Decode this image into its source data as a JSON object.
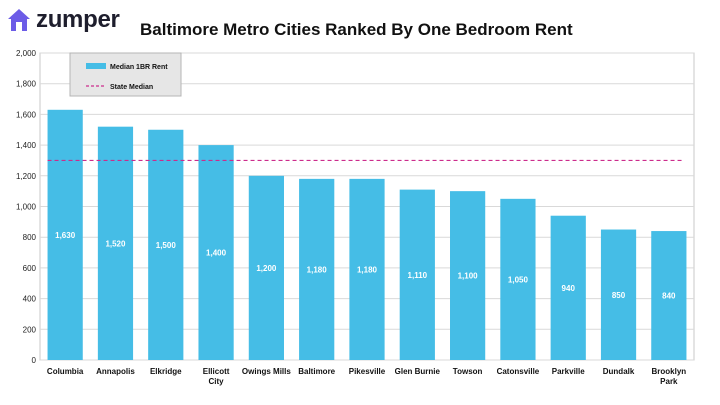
{
  "brand": {
    "name": "zumper",
    "logo_color": "#6c5ce7"
  },
  "title": "Baltimore Metro Cities Ranked By One Bedroom Rent",
  "chart_data": {
    "type": "bar",
    "categories": [
      "Columbia",
      "Annapolis",
      "Elkridge",
      "Ellicott City",
      "Owings Mills",
      "Baltimore",
      "Pikesville",
      "Glen Burnie",
      "Towson",
      "Catonsville",
      "Parkville",
      "Dundalk",
      "Brooklyn Park"
    ],
    "series": [
      {
        "name": "Median 1BR Rent",
        "values": [
          1630,
          1520,
          1500,
          1400,
          1200,
          1180,
          1180,
          1110,
          1100,
          1050,
          940,
          850,
          840
        ],
        "color": "#45bde6"
      }
    ],
    "reference_line": {
      "name": "State Median",
      "value": 1300,
      "color": "#cc2c8c",
      "style": "dashed"
    },
    "data_labels": [
      "1,630",
      "1,520",
      "1,500",
      "1,400",
      "1,200",
      "1,180",
      "1,180",
      "1,110",
      "1,100",
      "1,050",
      "940",
      "850",
      "840"
    ],
    "y_ticks": [
      "0",
      "200",
      "400",
      "600",
      "800",
      "1,000",
      "1,200",
      "1,400",
      "1,600",
      "1,800",
      "2,000"
    ],
    "ylim": [
      0,
      2000
    ],
    "grid": true,
    "legend_position": "top-left",
    "xlabel": "",
    "ylabel": ""
  }
}
